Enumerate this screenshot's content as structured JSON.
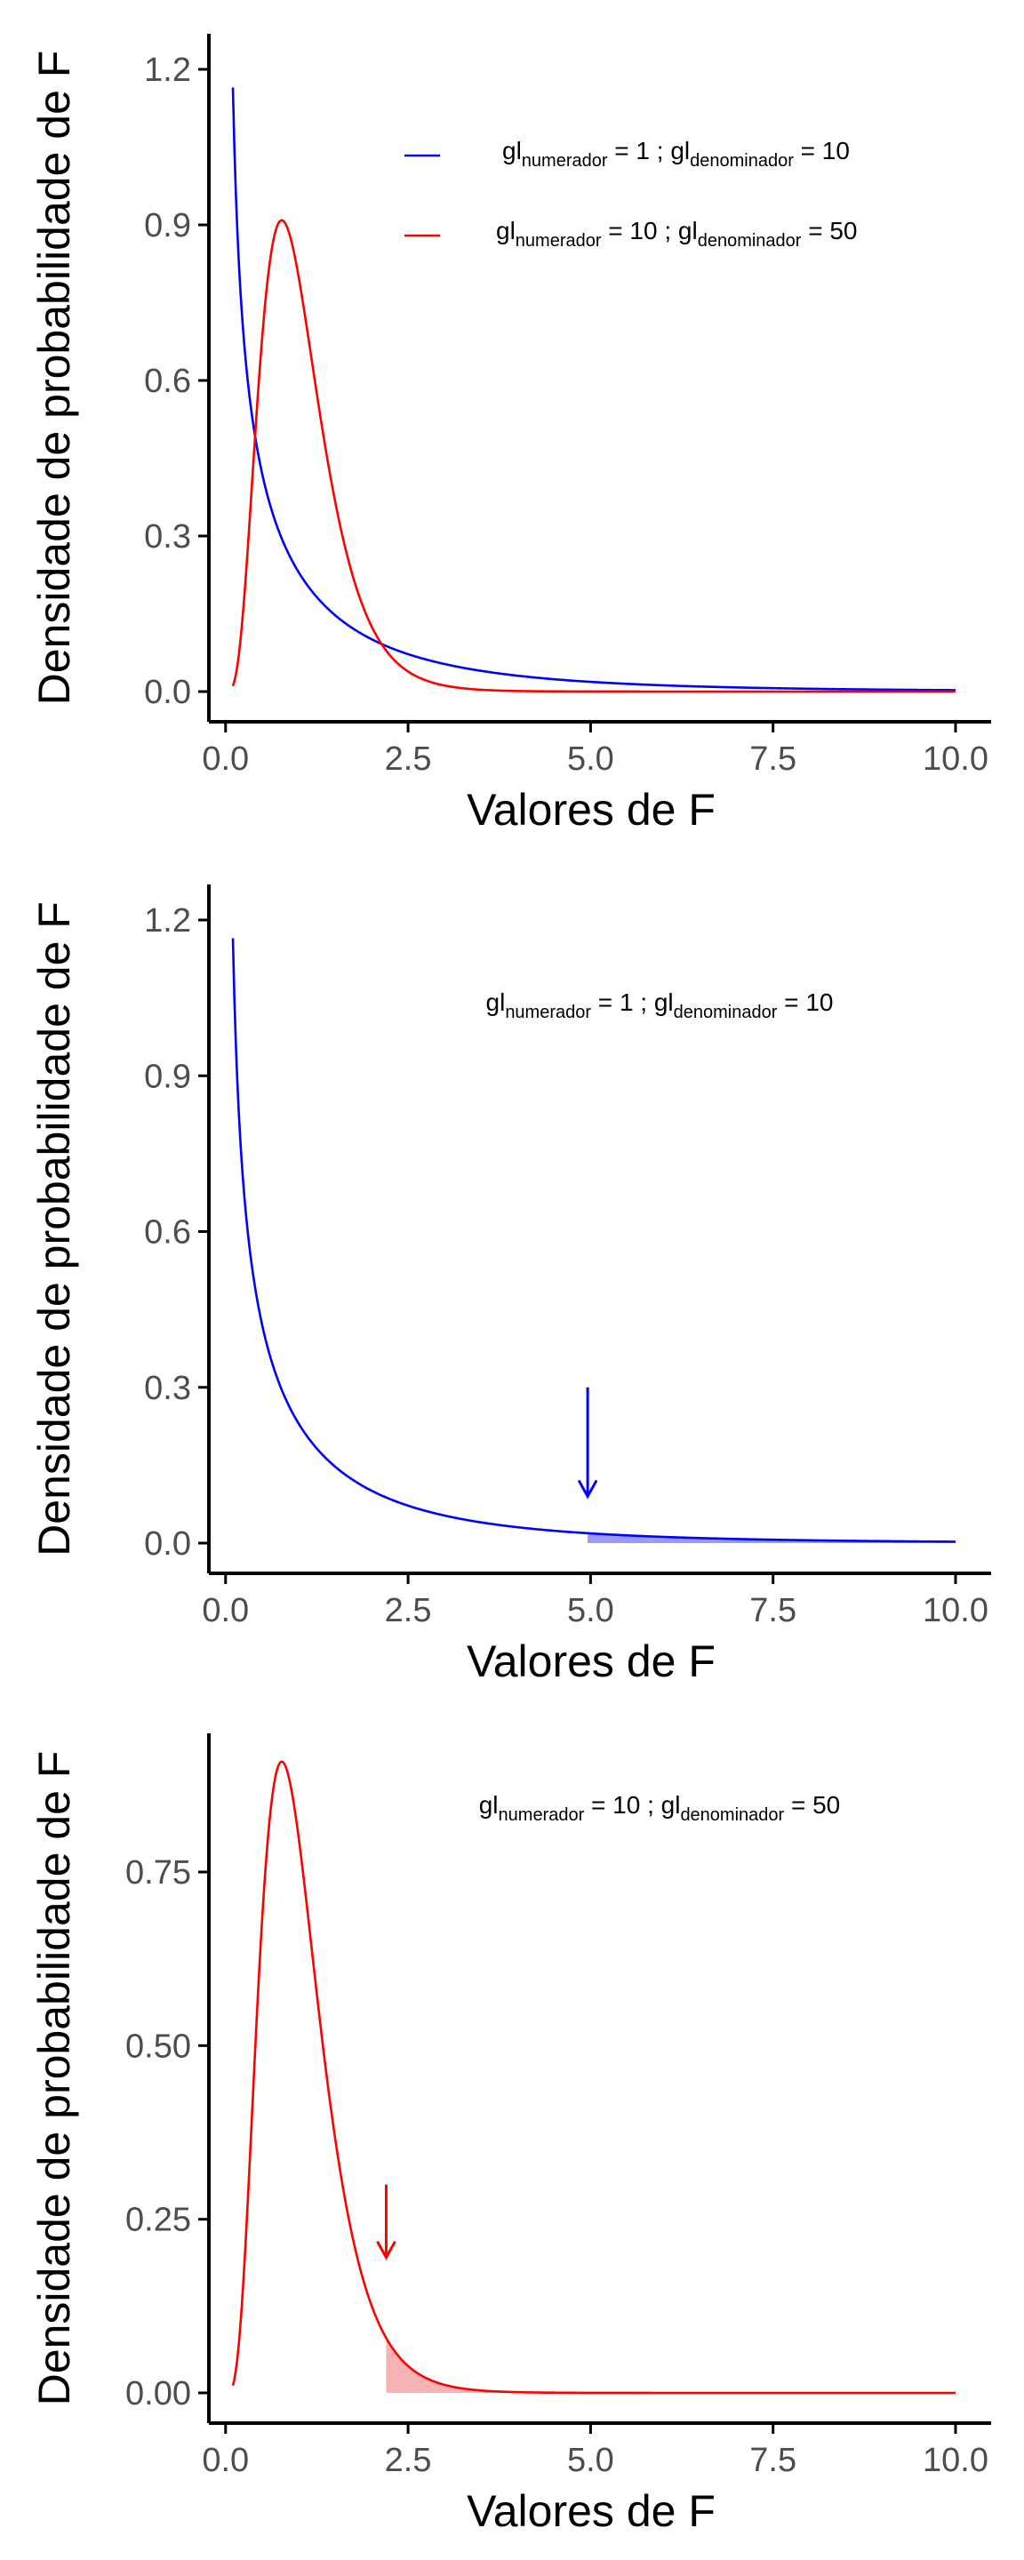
{
  "chart_data": [
    {
      "type": "line",
      "xlabel": "Valores de F",
      "ylabel": "Densidade de probabilidade de F",
      "xlim": [
        0,
        10
      ],
      "ylim": [
        0,
        1.2
      ],
      "xticks": [
        0.0,
        2.5,
        5.0,
        7.5,
        10.0
      ],
      "xtick_labels": [
        "0.0",
        "2.5",
        "5.0",
        "7.5",
        "10.0"
      ],
      "yticks": [
        0.0,
        0.3,
        0.6,
        0.9,
        1.2
      ],
      "ytick_labels": [
        "0.0",
        "0.3",
        "0.6",
        "0.9",
        "1.2"
      ],
      "grid": false,
      "legend_position": "top-right",
      "series": [
        {
          "name": "gl numerador = 1 ; gl denominador = 10",
          "legend_parts": [
            "gl",
            "numerador",
            " = 1 ; gl",
            "denominador",
            " = 10"
          ],
          "color": "#0000ff",
          "df1": 1,
          "df2": 10,
          "x": [
            0.1,
            0.2,
            0.3,
            0.5,
            0.75,
            1.0,
            1.5,
            2.0,
            2.5,
            3.0,
            4.0,
            5.0,
            6.0,
            7.0,
            8.0,
            9.0,
            10.0
          ],
          "y": [
            1.16,
            0.79,
            0.62,
            0.43,
            0.3,
            0.23,
            0.14,
            0.098,
            0.07,
            0.052,
            0.031,
            0.019,
            0.013,
            0.009,
            0.006,
            0.004,
            0.003
          ]
        },
        {
          "name": "gl numerador = 10 ; gl denominador = 50",
          "legend_parts": [
            "gl",
            "numerador",
            " = 10 ; gl",
            "denominador",
            " = 50"
          ],
          "color": "#ff0000",
          "df1": 10,
          "df2": 50,
          "x": [
            0.1,
            0.2,
            0.3,
            0.4,
            0.5,
            0.6,
            0.7,
            0.8,
            0.9,
            1.0,
            1.2,
            1.4,
            1.6,
            1.8,
            2.0,
            2.2,
            2.5,
            3.0,
            3.5,
            4.0,
            5.0,
            6.0,
            7.5,
            10.0
          ],
          "y": [
            0.013,
            0.09,
            0.28,
            0.52,
            0.72,
            0.84,
            0.89,
            0.9,
            0.87,
            0.8,
            0.62,
            0.44,
            0.29,
            0.18,
            0.11,
            0.066,
            0.03,
            0.008,
            0.002,
            0.0005,
            0.0,
            0.0,
            0.0,
            0.0
          ]
        }
      ]
    },
    {
      "type": "area",
      "xlabel": "Valores de F",
      "ylabel": "Densidade de probabilidade de F",
      "xlim": [
        0,
        10
      ],
      "ylim": [
        0,
        1.2
      ],
      "xticks": [
        0.0,
        2.5,
        5.0,
        7.5,
        10.0
      ],
      "xtick_labels": [
        "0.0",
        "2.5",
        "5.0",
        "7.5",
        "10.0"
      ],
      "yticks": [
        0.0,
        0.3,
        0.6,
        0.9,
        1.2
      ],
      "ytick_labels": [
        "0.0",
        "0.3",
        "0.6",
        "0.9",
        "1.2"
      ],
      "grid": false,
      "annotation": {
        "text_parts": [
          "gl",
          "numerador",
          " = 1 ; gl",
          "denominador",
          " = 10"
        ],
        "x": 5.0,
        "y": 0.995
      },
      "series": [
        {
          "name": "",
          "color": "#0000ff",
          "df1": 1,
          "df2": 10,
          "x": [
            0.1,
            0.2,
            0.3,
            0.5,
            0.75,
            1.0,
            1.5,
            2.0,
            2.5,
            3.0,
            4.0,
            5.0,
            6.0,
            7.0,
            8.0,
            9.0,
            10.0
          ],
          "y": [
            1.16,
            0.79,
            0.62,
            0.43,
            0.3,
            0.23,
            0.14,
            0.098,
            0.07,
            0.052,
            0.031,
            0.019,
            0.013,
            0.009,
            0.006,
            0.004,
            0.003
          ]
        }
      ],
      "shaded_from": 4.96,
      "shade_color": "#9999ff",
      "arrow": {
        "x": 4.96,
        "y_start": 0.3,
        "y_end": 0.09,
        "color": "#0000ff"
      }
    },
    {
      "type": "area",
      "xlabel": "Valores de F",
      "ylabel": "Densidade de probabilidade de F",
      "xlim": [
        0,
        10
      ],
      "ylim": [
        0,
        0.9
      ],
      "xticks": [
        0.0,
        2.5,
        5.0,
        7.5,
        10.0
      ],
      "xtick_labels": [
        "0.0",
        "2.5",
        "5.0",
        "7.5",
        "10.0"
      ],
      "yticks": [
        0.0,
        0.25,
        0.5,
        0.75
      ],
      "ytick_labels": [
        "0.00",
        "0.25",
        "0.50",
        "0.75"
      ],
      "grid": false,
      "annotation": {
        "text_parts": [
          "gl",
          "numerador",
          " = 10 ; gl",
          "denominador",
          " = 50"
        ],
        "x": 6.0,
        "y": 0.85
      },
      "series": [
        {
          "name": "",
          "color": "#ff0000",
          "df1": 10,
          "df2": 50,
          "x": [
            0.1,
            0.2,
            0.3,
            0.4,
            0.5,
            0.6,
            0.7,
            0.8,
            0.9,
            1.0,
            1.2,
            1.4,
            1.6,
            1.8,
            2.0,
            2.2,
            2.5,
            3.0,
            3.5,
            4.0,
            5.0,
            6.0,
            7.5,
            10.0
          ],
          "y": [
            0.013,
            0.09,
            0.28,
            0.52,
            0.72,
            0.84,
            0.89,
            0.9,
            0.87,
            0.8,
            0.62,
            0.44,
            0.29,
            0.18,
            0.11,
            0.066,
            0.03,
            0.008,
            0.002,
            0.0005,
            0.0,
            0.0,
            0.0,
            0.0
          ]
        }
      ],
      "shaded_from": 2.2,
      "shade_color": "#f8b4b4",
      "arrow": {
        "x": 2.2,
        "y_start": 0.3,
        "y_end": 0.195,
        "color": "#ff0000"
      }
    }
  ]
}
